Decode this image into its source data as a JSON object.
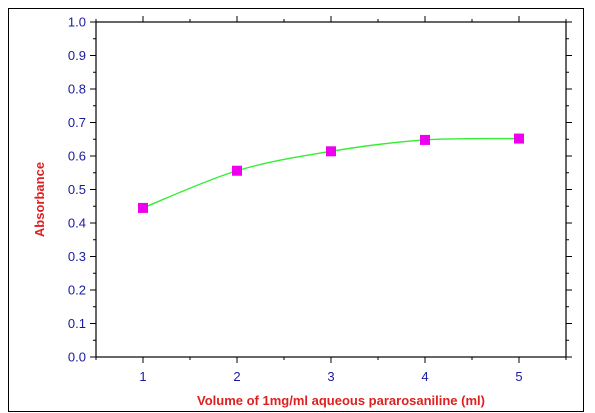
{
  "chart_data": {
    "type": "line",
    "title": "",
    "xlabel": "Volume of 1mg/ml aqueous pararosaniline (ml)",
    "ylabel": "Absorbance",
    "x": [
      1,
      2,
      3,
      4,
      5
    ],
    "series": [
      {
        "values": [
          0.445,
          0.556,
          0.614,
          0.648,
          0.652
        ]
      }
    ],
    "xlim": [
      0.5,
      5.5
    ],
    "ylim": [
      0.0,
      1.0
    ],
    "x_ticks": [
      "1",
      "2",
      "3",
      "4",
      "5"
    ],
    "y_ticks": [
      "0.0",
      "0.1",
      "0.2",
      "0.3",
      "0.4",
      "0.5",
      "0.6",
      "0.7",
      "0.8",
      "0.9",
      "1.0"
    ],
    "grid": false,
    "legend": "none",
    "colors": {
      "line": "#33ee33",
      "marker": "#ee00ee",
      "tick_labels": "#1a1aa0",
      "axis_labels": "#dd2020",
      "axes": "#000000"
    }
  }
}
